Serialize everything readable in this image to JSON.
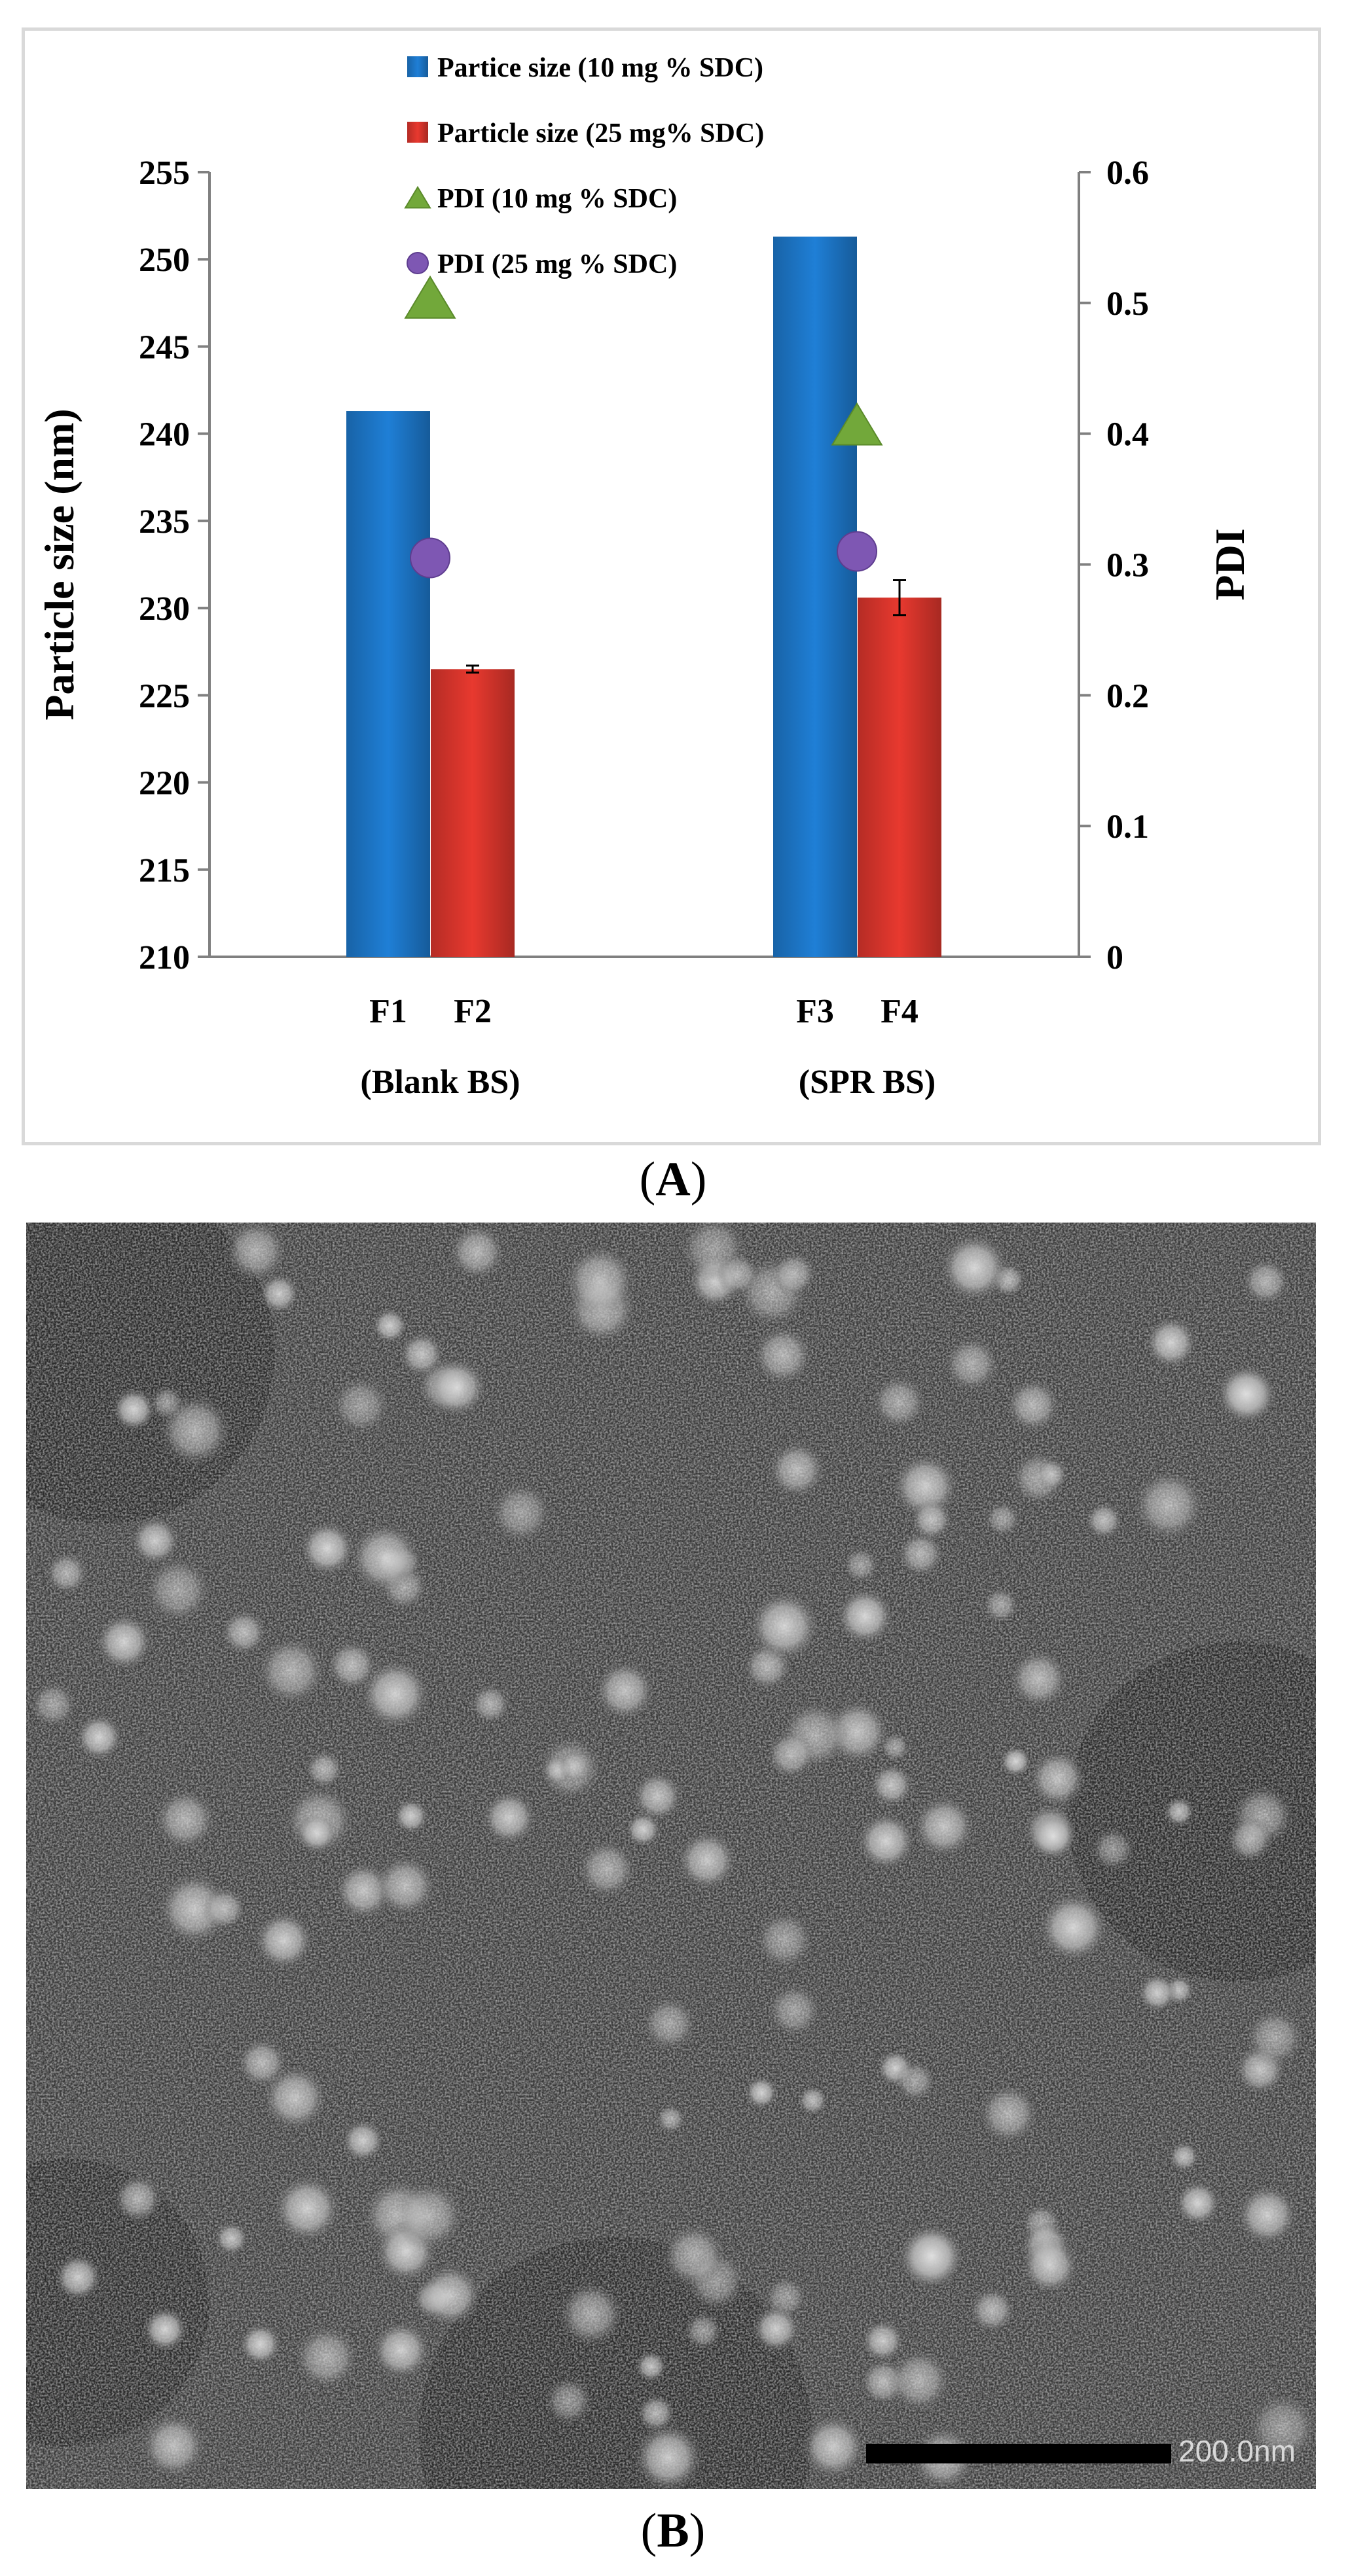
{
  "figure": {
    "panel_a_label": "A",
    "panel_b_label": "B",
    "scale_bar_label": "200.0nm"
  },
  "chart_data": {
    "type": "bar",
    "groups": [
      {
        "label": "(Blank BS)",
        "bars": [
          "F1",
          "F2"
        ]
      },
      {
        "label": "(SPR BS)",
        "bars": [
          "F3",
          "F4"
        ]
      }
    ],
    "categories": [
      "F1",
      "F2",
      "F3",
      "F4"
    ],
    "left_axis": {
      "label": "Particle size (nm)",
      "ylim": [
        210,
        255
      ],
      "ticks": [
        210,
        215,
        220,
        225,
        230,
        235,
        240,
        245,
        250,
        255
      ]
    },
    "right_axis": {
      "label": "PDI",
      "ylim": [
        0,
        0.6
      ],
      "ticks": [
        "0",
        "0.1",
        "0.2",
        "0.3",
        "0.4",
        "0.5",
        "0.6"
      ]
    },
    "series": [
      {
        "name": "Partice size (10 mg % SDC)",
        "kind": "bar",
        "axis": "left",
        "color": "#1f7fd6",
        "points": [
          {
            "category": "F1",
            "value": 241.3
          },
          {
            "category": "F3",
            "value": 251.3
          }
        ]
      },
      {
        "name": "Particle size (25 mg% SDC)",
        "kind": "bar",
        "axis": "left",
        "color": "#e8392f",
        "points": [
          {
            "category": "F2",
            "value": 226.5,
            "error": 0.2
          },
          {
            "category": "F4",
            "value": 230.6,
            "error": 1.0
          }
        ]
      },
      {
        "name": "PDI (10 mg % SDC)",
        "kind": "marker",
        "marker": "triangle",
        "axis": "right",
        "color": "#72a83a",
        "points": [
          {
            "category": "F1",
            "value": 0.502
          },
          {
            "category": "F3",
            "value": 0.405
          }
        ]
      },
      {
        "name": "PDI (25 mg % SDC)",
        "kind": "marker",
        "marker": "circle",
        "axis": "right",
        "color": "#7e57b3",
        "points": [
          {
            "category": "F1",
            "value": 0.305
          },
          {
            "category": "F3",
            "value": 0.31
          }
        ]
      }
    ],
    "legend_position": "top-center",
    "grid": false
  }
}
